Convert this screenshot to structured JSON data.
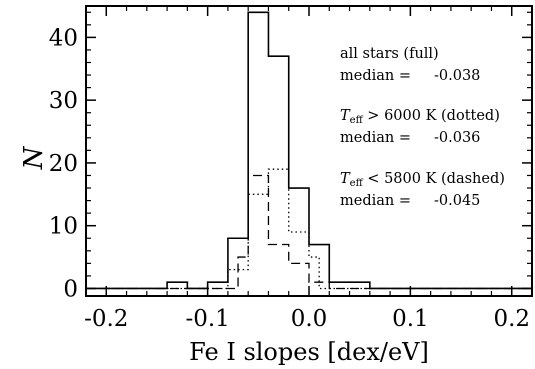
{
  "chart_data": {
    "type": "histogram",
    "title": "",
    "xlabel": "Fe I slopes [dex/eV]",
    "ylabel": "N",
    "xlim": [
      -0.22,
      0.22
    ],
    "ylim": [
      -1.2,
      45
    ],
    "xticks": [
      -0.2,
      -0.1,
      0.0,
      0.1,
      0.2
    ],
    "xtick_labels": [
      "-0.2",
      "-0.1",
      "0.0",
      "0.1",
      "0.2"
    ],
    "yticks": [
      0,
      10,
      20,
      30,
      40
    ],
    "ytick_labels": [
      "0",
      "10",
      "20",
      "30",
      "40"
    ],
    "grid": false,
    "series": [
      {
        "style": "solid",
        "bin_edges": [
          -0.22,
          -0.14,
          -0.13,
          -0.12,
          -0.11,
          -0.1,
          -0.09,
          -0.08,
          -0.07,
          -0.06,
          -0.05,
          -0.04,
          -0.03,
          -0.02,
          -0.01,
          0.0,
          0.01,
          0.02,
          0.03,
          0.06,
          0.22
        ],
        "counts": [
          0,
          1,
          1,
          0,
          0,
          1,
          1,
          8,
          8,
          44,
          44,
          37,
          37,
          16,
          16,
          7,
          7,
          1,
          1,
          0
        ]
      },
      {
        "style": "dotted",
        "bin_edges": [
          -0.22,
          -0.08,
          -0.07,
          -0.06,
          -0.05,
          -0.04,
          -0.03,
          -0.02,
          -0.01,
          0.0,
          0.01,
          0.22
        ],
        "counts": [
          0,
          3,
          3,
          15,
          15,
          19,
          19,
          9,
          9,
          5,
          0
        ]
      },
      {
        "style": "dashed",
        "bin_edges": [
          -0.22,
          -0.14,
          -0.12,
          -0.08,
          -0.07,
          -0.06,
          -0.05,
          -0.04,
          -0.03,
          -0.02,
          -0.01,
          0.0,
          0.01,
          0.02,
          0.03,
          0.06,
          0.22
        ],
        "counts": [
          0,
          0,
          0,
          0,
          5,
          18,
          18,
          7,
          7,
          4,
          4,
          1,
          1,
          0,
          0,
          0
        ]
      }
    ],
    "annotations": {
      "all": {
        "label": "all stars (full)",
        "median_text": "median =",
        "median_value": "-0.038"
      },
      "hot": {
        "t_main": "T",
        "t_sub": "eff",
        "rest": " > 6000 K (dotted)",
        "median_text": "median =",
        "median_value": "-0.036"
      },
      "cool": {
        "t_main": "T",
        "t_sub": "eff",
        "rest": " < 5800 K (dashed)",
        "median_text": "median =",
        "median_value": "-0.045"
      }
    }
  }
}
